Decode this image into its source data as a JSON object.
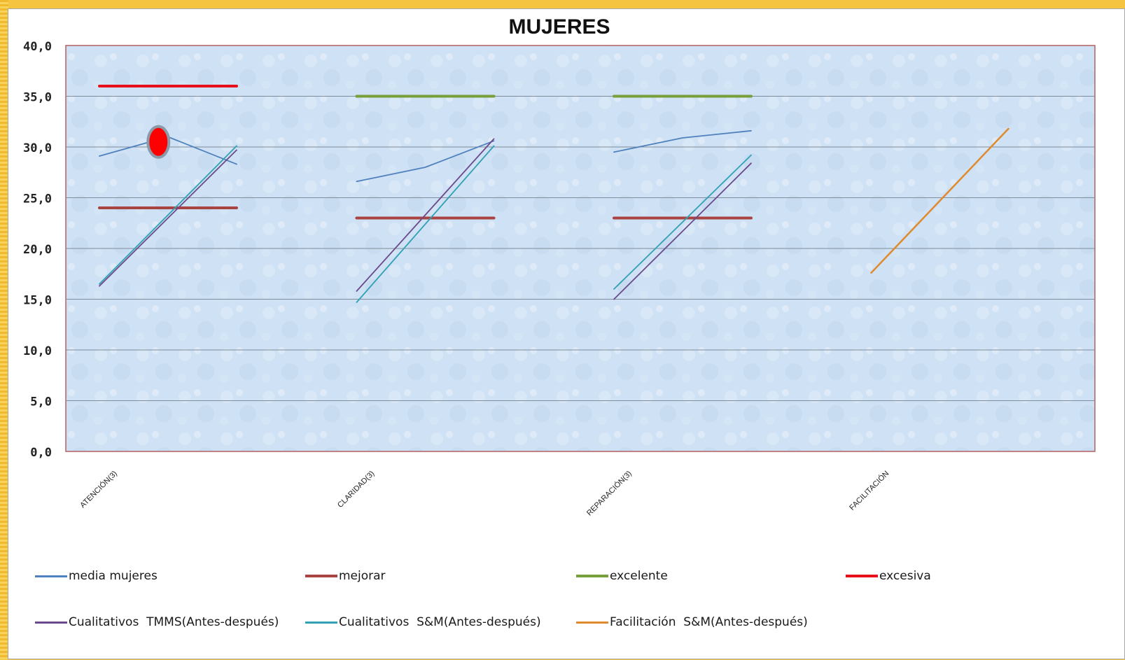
{
  "chart_data": {
    "type": "line",
    "title": "MUJERES",
    "xlabel": "",
    "ylabel": "",
    "ylim": [
      0,
      40
    ],
    "grid": true,
    "legend_position": "bottom",
    "categories": [
      "ATENCIÓN(3)",
      "CLARIDAD(3)",
      "REPARACIÓN(3)",
      "FACILITACIÓN"
    ],
    "y_ticks": [
      "0,0",
      "5,0",
      "10,0",
      "15,0",
      "20,0",
      "25,0",
      "30,0",
      "35,0",
      "40,0"
    ],
    "series": [
      {
        "name": "media mujeres",
        "color": "#4f81bd",
        "segments": [
          {
            "category": 0,
            "points": [
              29.1,
              31.0,
              28.3
            ]
          },
          {
            "category": 1,
            "points": [
              26.6,
              28.0,
              30.6
            ]
          },
          {
            "category": 2,
            "points": [
              29.5,
              30.9,
              31.6
            ]
          }
        ]
      },
      {
        "name": "mejorar",
        "color": "#a94442",
        "segments": [
          {
            "category": 0,
            "points": [
              24.0,
              24.0
            ]
          },
          {
            "category": 1,
            "points": [
              23.0,
              23.0
            ]
          },
          {
            "category": 2,
            "points": [
              23.0,
              23.0
            ]
          }
        ]
      },
      {
        "name": "excelente",
        "color": "#77a03b",
        "segments": [
          {
            "category": 1,
            "points": [
              35.0,
              35.0
            ]
          },
          {
            "category": 2,
            "points": [
              35.0,
              35.0
            ]
          }
        ]
      },
      {
        "name": "excesiva",
        "color": "#e8101a",
        "segments": [
          {
            "category": 0,
            "points": [
              36.0,
              36.0
            ]
          }
        ]
      },
      {
        "name": "Cualitativos  TMMS(Antes-después)",
        "color": "#6b4a8c",
        "segments": [
          {
            "category": 0,
            "points": [
              16.3,
              29.7
            ]
          },
          {
            "category": 1,
            "points": [
              15.8,
              30.8
            ]
          },
          {
            "category": 2,
            "points": [
              15.0,
              28.4
            ]
          }
        ]
      },
      {
        "name": "Cualitativos  S&M(Antes-después)",
        "color": "#31a1b3",
        "segments": [
          {
            "category": 0,
            "points": [
              16.5,
              30.1
            ]
          },
          {
            "category": 1,
            "points": [
              14.7,
              30.1
            ]
          },
          {
            "category": 2,
            "points": [
              16.0,
              29.2
            ]
          }
        ]
      },
      {
        "name": "Facilitación  S&M(Antes-después)",
        "color": "#e08a2e",
        "segments": [
          {
            "category": 3,
            "points": [
              17.6,
              31.8
            ]
          }
        ]
      }
    ],
    "annotation": {
      "shape": "red-oval-marker",
      "category": 0,
      "value": 30.5,
      "color": "#ff0000"
    }
  }
}
